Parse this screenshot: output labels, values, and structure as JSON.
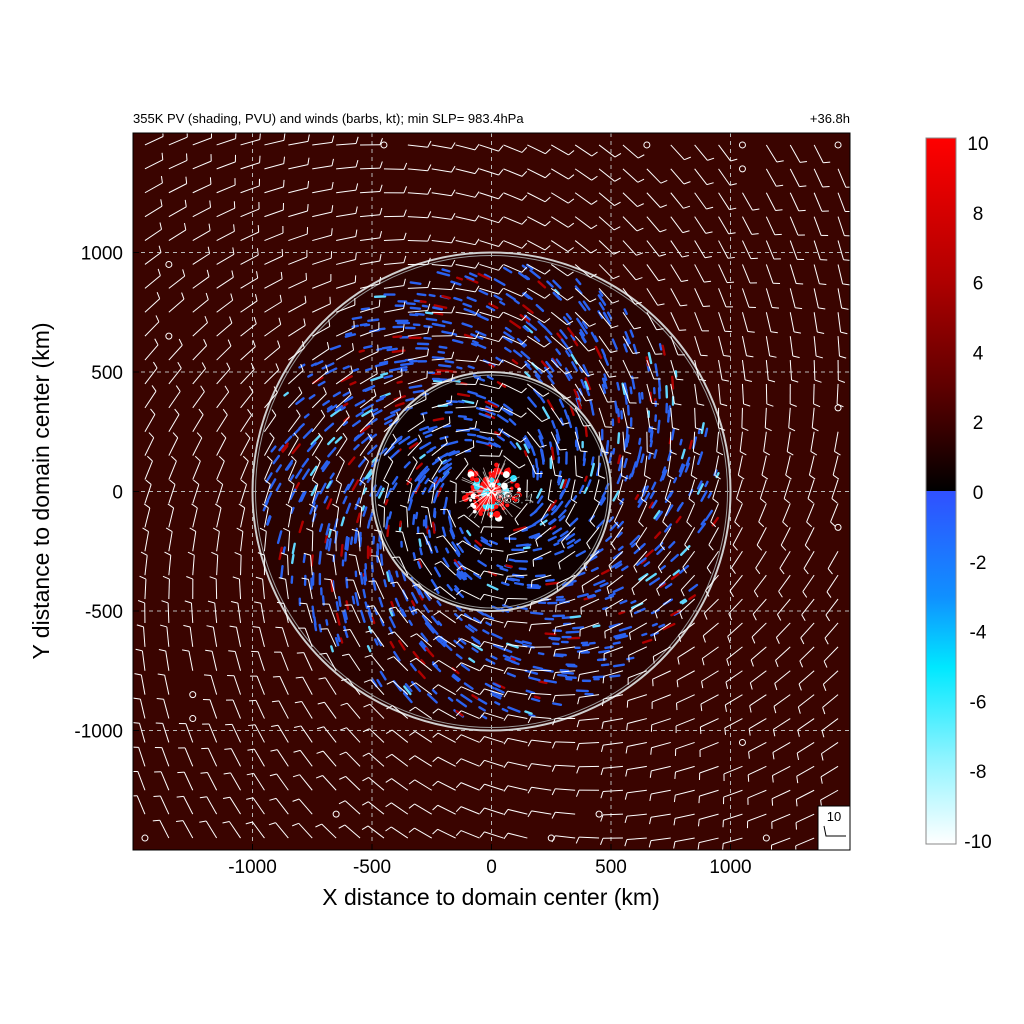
{
  "chart_data": {
    "type": "heatmap",
    "title": "355K PV (shading, PVU) and winds (barbs, kt); min SLP=  983.4hPa",
    "forecast_time": "+36.8h",
    "xlabel": "X distance to domain center (km)",
    "ylabel": "Y distance to domain center (km)",
    "xlim": [
      -1500,
      1500
    ],
    "ylim": [
      -1500,
      1500
    ],
    "x_ticks": [
      -1000,
      -500,
      0,
      500,
      1000
    ],
    "y_ticks": [
      -1000,
      -500,
      0,
      500,
      1000
    ],
    "x_tick_labels": [
      "-1000",
      "-500",
      "0",
      "500",
      "1000"
    ],
    "y_tick_labels": [
      "-1000",
      "-500",
      "0",
      "500",
      "1000"
    ],
    "grid": true,
    "range_rings_km": [
      500,
      1000
    ],
    "center_marker": {
      "x": 0,
      "y": 0,
      "label": "983.4"
    },
    "wind_barb_reference": {
      "label": "10",
      "units": "kt"
    },
    "colorbar": {
      "range": [
        -10,
        10
      ],
      "ticks": [
        10,
        8,
        6,
        4,
        2,
        0,
        -2,
        -4,
        -6,
        -8,
        -10
      ],
      "tick_labels": [
        "10",
        "8",
        "6",
        "4",
        "2",
        "0",
        "-2",
        "-4",
        "-6",
        "-8",
        "-10"
      ],
      "colors": {
        "pos_low": "#000000",
        "pos_mid": "#6a0000",
        "pos_high": "#ff0000",
        "neg_low": "#3050ff",
        "neg_mid": "#00e8ff",
        "neg_high": "#ffffff"
      }
    },
    "background_pv_color": "#3a0400",
    "negative_pv_band_color": "#2a62f0"
  }
}
